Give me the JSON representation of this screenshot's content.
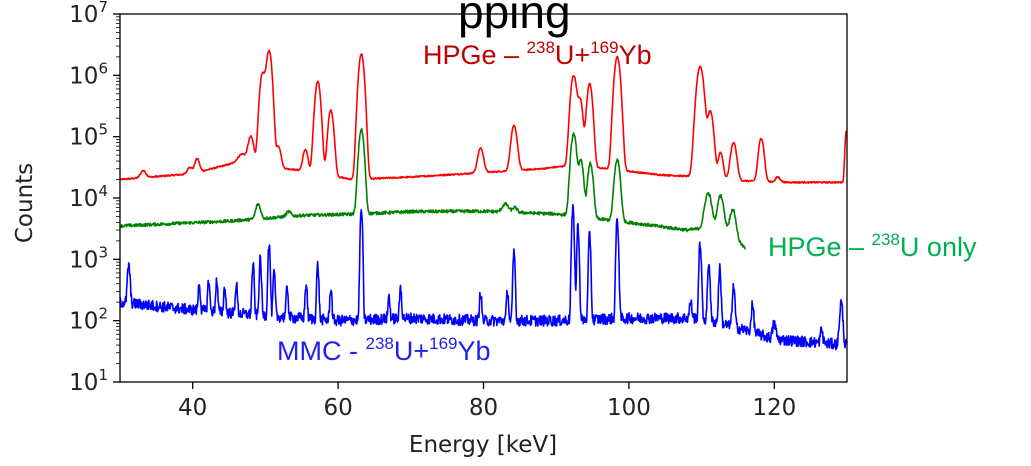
{
  "chart_data": {
    "type": "line",
    "title_partial": "pping",
    "xlabel": "Energy [keV]",
    "ylabel": "Counts",
    "xlim": [
      30,
      130
    ],
    "ylim": [
      10,
      10000000
    ],
    "yscale": "log",
    "x_ticks": [
      40,
      60,
      80,
      100,
      120
    ],
    "x_tick_labels": [
      "40",
      "60",
      "80",
      "100",
      "120"
    ],
    "y_ticks": [
      10,
      100,
      1000,
      10000,
      100000,
      1000000,
      10000000
    ],
    "y_tick_labels": [
      {
        "base": "10",
        "exp": "1"
      },
      {
        "base": "10",
        "exp": "2"
      },
      {
        "base": "10",
        "exp": "3"
      },
      {
        "base": "10",
        "exp": "4"
      },
      {
        "base": "10",
        "exp": "5"
      },
      {
        "base": "10",
        "exp": "6"
      },
      {
        "base": "10",
        "exp": "7"
      }
    ],
    "annotations": [
      {
        "id": "red",
        "color": "#c00000",
        "parts": [
          [
            "HPGe – ",
            0
          ],
          [
            "238",
            1
          ],
          [
            "U+",
            0
          ],
          [
            "169",
            1
          ],
          [
            "Yb",
            0
          ]
        ]
      },
      {
        "id": "green",
        "color": "#00b050",
        "parts": [
          [
            "HPGe – ",
            0
          ],
          [
            "238",
            1
          ],
          [
            "U only",
            0
          ]
        ]
      },
      {
        "id": "blue",
        "color": "#1f1ff0",
        "parts": [
          [
            "MMC - ",
            0
          ],
          [
            "238",
            1
          ],
          [
            "U+",
            0
          ],
          [
            "169",
            1
          ],
          [
            "Yb",
            0
          ]
        ]
      }
    ],
    "series": [
      {
        "color": "#ff0000",
        "x_range": [
          30,
          130
        ],
        "baseline": [
          [
            30,
            20000
          ],
          [
            40,
            25000
          ],
          [
            46,
            38000
          ],
          [
            55,
            28000
          ],
          [
            62,
            20000
          ],
          [
            70,
            22000
          ],
          [
            80,
            26000
          ],
          [
            88,
            30000
          ],
          [
            92,
            34000
          ],
          [
            97,
            30000
          ],
          [
            104,
            24000
          ],
          [
            110,
            22000
          ],
          [
            116,
            19000
          ],
          [
            122,
            18000
          ],
          [
            129.5,
            18000
          ]
        ],
        "peaks": [
          {
            "e": 33.2,
            "h": 28000,
            "w": 0.35
          },
          {
            "e": 39.6,
            "h": 32000,
            "w": 0.3
          },
          {
            "e": 40.6,
            "h": 44000,
            "w": 0.3
          },
          {
            "e": 46.8,
            "h": 52000,
            "w": 0.5
          },
          {
            "e": 48.0,
            "h": 100000,
            "w": 0.35
          },
          {
            "e": 49.6,
            "h": 1050000,
            "w": 0.32
          },
          {
            "e": 50.5,
            "h": 2500000,
            "w": 0.32
          },
          {
            "e": 51.8,
            "h": 70000,
            "w": 0.3
          },
          {
            "e": 55.5,
            "h": 62000,
            "w": 0.3
          },
          {
            "e": 57.2,
            "h": 800000,
            "w": 0.32
          },
          {
            "e": 59.0,
            "h": 270000,
            "w": 0.32
          },
          {
            "e": 63.2,
            "h": 2200000,
            "w": 0.32
          },
          {
            "e": 79.6,
            "h": 65000,
            "w": 0.35
          },
          {
            "e": 84.2,
            "h": 150000,
            "w": 0.35
          },
          {
            "e": 92.4,
            "h": 1000000,
            "w": 0.34
          },
          {
            "e": 93.3,
            "h": 400000,
            "w": 0.3
          },
          {
            "e": 94.6,
            "h": 720000,
            "w": 0.32
          },
          {
            "e": 98.4,
            "h": 2000000,
            "w": 0.34
          },
          {
            "e": 109.8,
            "h": 1400000,
            "w": 0.4
          },
          {
            "e": 111.2,
            "h": 260000,
            "w": 0.35
          },
          {
            "e": 112.6,
            "h": 55000,
            "w": 0.3
          },
          {
            "e": 114.4,
            "h": 80000,
            "w": 0.35
          },
          {
            "e": 118.2,
            "h": 95000,
            "w": 0.32
          },
          {
            "e": 120.5,
            "h": 22000,
            "w": 0.3
          },
          {
            "e": 129.9,
            "h": 120000,
            "w": 0.15
          }
        ]
      },
      {
        "color": "#008000",
        "x_range": [
          30,
          116
        ],
        "baseline": [
          [
            30,
            3500
          ],
          [
            45,
            4200
          ],
          [
            55,
            5200
          ],
          [
            63,
            5500
          ],
          [
            70,
            6000
          ],
          [
            80,
            6100
          ],
          [
            90,
            5500
          ],
          [
            100,
            4000
          ],
          [
            108,
            3000
          ],
          [
            113,
            3500
          ],
          [
            116,
            1500
          ]
        ],
        "peaks": [
          {
            "e": 49.0,
            "h": 8000,
            "w": 0.3
          },
          {
            "e": 53.2,
            "h": 6000,
            "w": 0.3
          },
          {
            "e": 63.2,
            "h": 130000,
            "w": 0.3
          },
          {
            "e": 83.0,
            "h": 8000,
            "w": 0.4
          },
          {
            "e": 84.3,
            "h": 7000,
            "w": 0.3
          },
          {
            "e": 92.4,
            "h": 110000,
            "w": 0.32
          },
          {
            "e": 93.4,
            "h": 40000,
            "w": 0.3
          },
          {
            "e": 94.7,
            "h": 37000,
            "w": 0.3
          },
          {
            "e": 98.4,
            "h": 42000,
            "w": 0.32
          },
          {
            "e": 110.9,
            "h": 12000,
            "w": 0.4
          },
          {
            "e": 112.6,
            "h": 11000,
            "w": 0.35
          },
          {
            "e": 114.3,
            "h": 6500,
            "w": 0.35
          }
        ]
      },
      {
        "color": "#0000ff",
        "x_range": [
          30,
          130
        ],
        "baseline": [
          [
            30,
            200
          ],
          [
            40,
            150
          ],
          [
            50,
            120
          ],
          [
            60,
            100
          ],
          [
            70,
            110
          ],
          [
            80,
            100
          ],
          [
            90,
            100
          ],
          [
            100,
            110
          ],
          [
            110,
            110
          ],
          [
            116,
            70
          ],
          [
            120,
            50
          ],
          [
            130,
            40
          ]
        ],
        "peaks": [
          {
            "e": 31.2,
            "h": 800,
            "w": 0.15
          },
          {
            "e": 40.9,
            "h": 400,
            "w": 0.12
          },
          {
            "e": 42.2,
            "h": 450,
            "w": 0.12
          },
          {
            "e": 43.3,
            "h": 450,
            "w": 0.12
          },
          {
            "e": 44.4,
            "h": 350,
            "w": 0.12
          },
          {
            "e": 46.0,
            "h": 400,
            "w": 0.12
          },
          {
            "e": 48.3,
            "h": 800,
            "w": 0.12
          },
          {
            "e": 49.3,
            "h": 1000,
            "w": 0.12
          },
          {
            "e": 50.5,
            "h": 1800,
            "w": 0.12
          },
          {
            "e": 51.2,
            "h": 600,
            "w": 0.12
          },
          {
            "e": 53.0,
            "h": 350,
            "w": 0.12
          },
          {
            "e": 55.6,
            "h": 400,
            "w": 0.12
          },
          {
            "e": 57.2,
            "h": 800,
            "w": 0.12
          },
          {
            "e": 59.0,
            "h": 350,
            "w": 0.12
          },
          {
            "e": 63.2,
            "h": 6500,
            "w": 0.12
          },
          {
            "e": 67.0,
            "h": 250,
            "w": 0.12
          },
          {
            "e": 68.6,
            "h": 350,
            "w": 0.12
          },
          {
            "e": 79.6,
            "h": 300,
            "w": 0.12
          },
          {
            "e": 83.3,
            "h": 300,
            "w": 0.12
          },
          {
            "e": 84.2,
            "h": 1300,
            "w": 0.12
          },
          {
            "e": 92.3,
            "h": 6500,
            "w": 0.13
          },
          {
            "e": 93.0,
            "h": 3500,
            "w": 0.12
          },
          {
            "e": 94.6,
            "h": 2500,
            "w": 0.12
          },
          {
            "e": 98.4,
            "h": 4500,
            "w": 0.13
          },
          {
            "e": 108.5,
            "h": 200,
            "w": 0.15
          },
          {
            "e": 109.8,
            "h": 1800,
            "w": 0.13
          },
          {
            "e": 111.0,
            "h": 900,
            "w": 0.13
          },
          {
            "e": 112.5,
            "h": 700,
            "w": 0.13
          },
          {
            "e": 114.4,
            "h": 350,
            "w": 0.15
          },
          {
            "e": 117.0,
            "h": 180,
            "w": 0.15
          },
          {
            "e": 120.0,
            "h": 90,
            "w": 0.2
          },
          {
            "e": 126.5,
            "h": 70,
            "w": 0.15
          },
          {
            "e": 129.2,
            "h": 200,
            "w": 0.18
          }
        ]
      }
    ]
  }
}
